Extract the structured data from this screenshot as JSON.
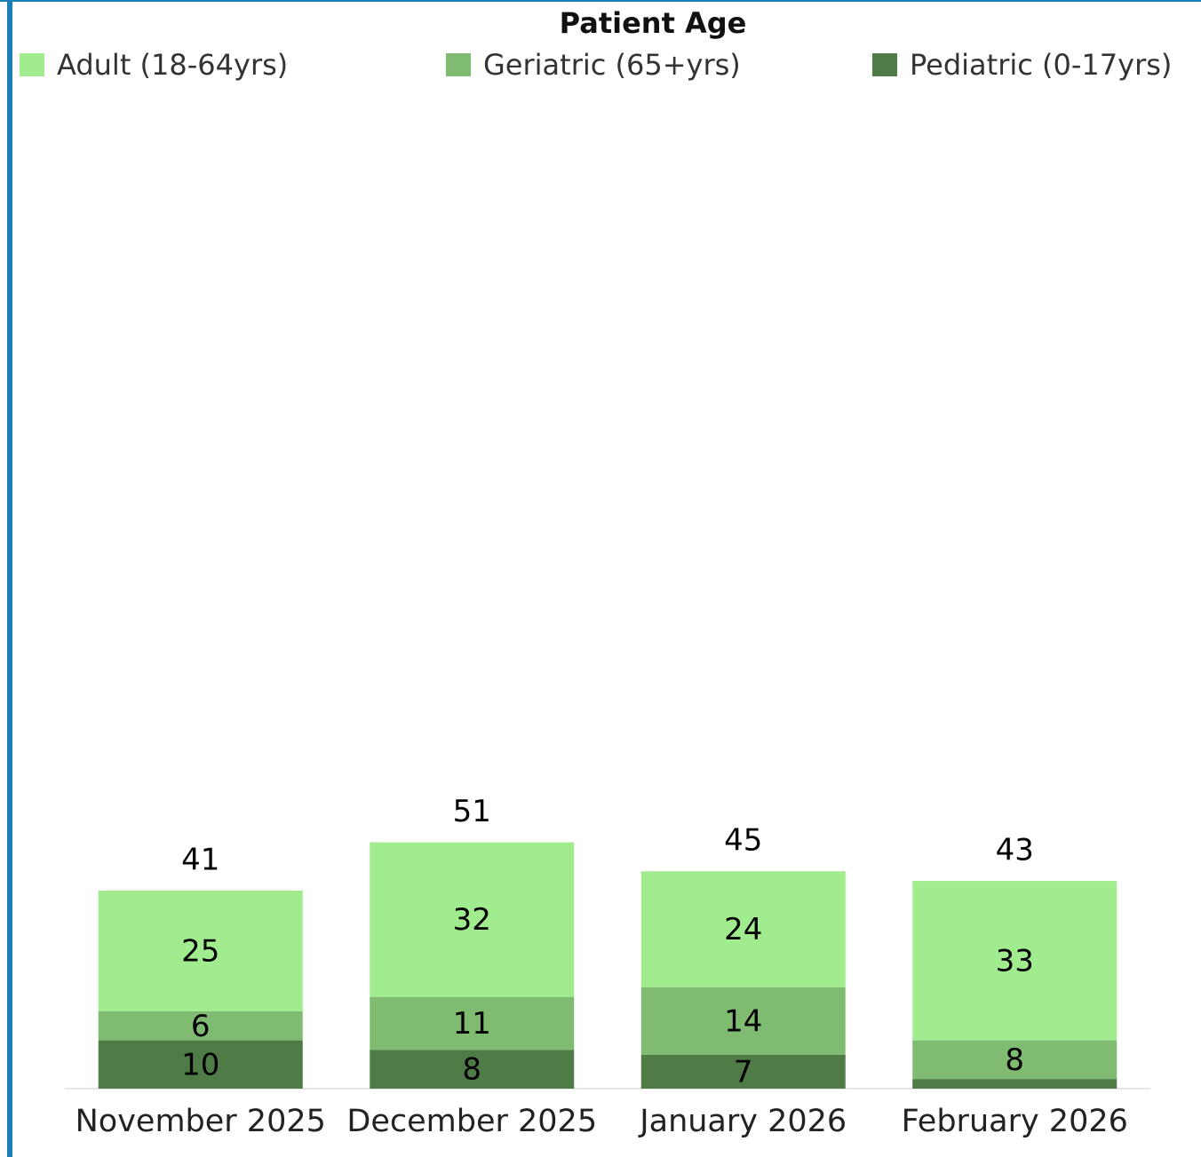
{
  "chart_data": {
    "type": "stacked_bar",
    "title": "Patient Age",
    "categories": [
      "November 2025",
      "December 2025",
      "January 2026",
      "February 2026"
    ],
    "series": [
      {
        "name": "Pediatric (0-17yrs)",
        "color": "#4f7b47",
        "values": [
          10,
          8,
          7,
          2
        ],
        "value_labels": [
          "10",
          "8",
          "7",
          null
        ]
      },
      {
        "name": "Geriatric (65+yrs)",
        "color": "#80bb72",
        "values": [
          6,
          11,
          14,
          8
        ]
      },
      {
        "name": "Adult (18-64yrs)",
        "color": "#a0ec8e",
        "values": [
          25,
          32,
          24,
          33
        ]
      }
    ],
    "totals": [
      41,
      51,
      45,
      43
    ],
    "legend_order": [
      2,
      1,
      0
    ],
    "ylim": [
      0,
      207
    ]
  }
}
